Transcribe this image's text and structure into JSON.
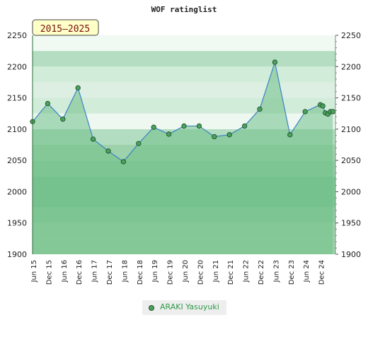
{
  "title": "WOF ratinglist",
  "badge": "2015–2025",
  "legend": {
    "label": "ARAKI Yasuyuki"
  },
  "colors": {
    "line": "#3b82c4",
    "area": "#7cc795",
    "point": "#4aa25e"
  },
  "chart_data": {
    "type": "area",
    "title": "WOF ratinglist",
    "xlabel": "",
    "ylabel": "",
    "ylim": [
      1900,
      2250
    ],
    "yticks": [
      1900,
      1950,
      2000,
      2050,
      2100,
      2150,
      2200,
      2250
    ],
    "x_tick_labels": [
      "Jun 15",
      "Dec 15",
      "Jun 16",
      "Dec 16",
      "Jun 17",
      "Dec 17",
      "Jun 18",
      "Dec 18",
      "Jun 19",
      "Dec 19",
      "Jun 20",
      "Dec 20",
      "Jun 21",
      "Dec 21",
      "Jun 22",
      "Dec 22",
      "Jun 23",
      "Dec 23",
      "Jun 24",
      "Dec 24"
    ],
    "series": [
      {
        "name": "ARAKI Yasuyuki",
        "points": [
          {
            "x": "2015-06",
            "y": 2112
          },
          {
            "x": "2015-12",
            "y": 2141
          },
          {
            "x": "2016-06",
            "y": 2116
          },
          {
            "x": "2016-12",
            "y": 2166
          },
          {
            "x": "2017-06",
            "y": 2084
          },
          {
            "x": "2017-12",
            "y": 2065
          },
          {
            "x": "2018-06",
            "y": 2048
          },
          {
            "x": "2018-12",
            "y": 2077
          },
          {
            "x": "2019-06",
            "y": 2103
          },
          {
            "x": "2019-12",
            "y": 2092
          },
          {
            "x": "2020-06",
            "y": 2105
          },
          {
            "x": "2020-12",
            "y": 2105
          },
          {
            "x": "2021-06",
            "y": 2088
          },
          {
            "x": "2021-12",
            "y": 2091
          },
          {
            "x": "2022-06",
            "y": 2105
          },
          {
            "x": "2022-12",
            "y": 2132
          },
          {
            "x": "2023-06",
            "y": 2207
          },
          {
            "x": "2023-12",
            "y": 2091
          },
          {
            "x": "2024-06",
            "y": 2128
          },
          {
            "x": "2024-12",
            "y": 2139
          },
          {
            "x": "2025-01",
            "y": 2137
          },
          {
            "x": "2025-02",
            "y": 2126
          },
          {
            "x": "2025-03",
            "y": 2124
          },
          {
            "x": "2025-04",
            "y": 2128
          },
          {
            "x": "2025-05",
            "y": 2128
          }
        ]
      }
    ]
  }
}
